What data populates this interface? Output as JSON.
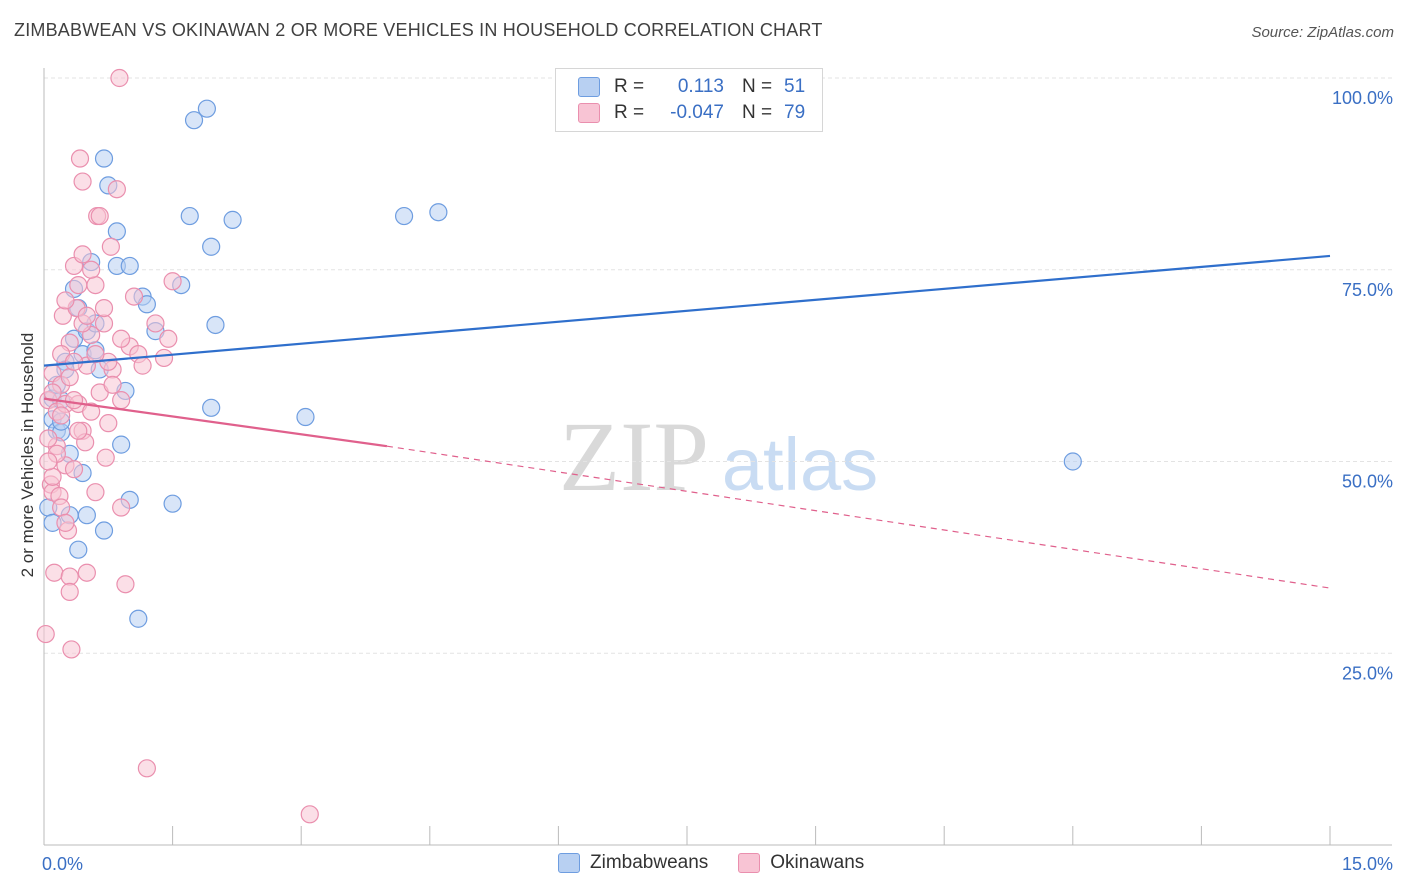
{
  "title": "ZIMBABWEAN VS OKINAWAN 2 OR MORE VEHICLES IN HOUSEHOLD CORRELATION CHART",
  "source": "Source: ZipAtlas.com",
  "watermark": {
    "zip": "ZIP",
    "atlas": "atlas"
  },
  "legend": {
    "r_label": "R =",
    "n_label": "N =",
    "rows": [
      {
        "r": "0.113",
        "n": "51",
        "fill": "#b8d0f2",
        "stroke": "#6e9de0"
      },
      {
        "r": "-0.047",
        "n": "79",
        "fill": "#f8c4d4",
        "stroke": "#ea8fae"
      }
    ]
  },
  "chart_data": {
    "type": "scatter",
    "title": "ZIMBABWEAN VS OKINAWAN 2 OR MORE VEHICLES IN HOUSEHOLD CORRELATION CHART",
    "xlabel": "",
    "ylabel": "2 or more Vehicles in Household",
    "xlim": [
      0,
      15
    ],
    "ylim": [
      0,
      100
    ],
    "x_tick_labels": [
      "0.0%",
      "15.0%"
    ],
    "y_tick_values": [
      25,
      50,
      75,
      100
    ],
    "y_tick_labels": [
      "25.0%",
      "50.0%",
      "75.0%",
      "100.0%"
    ],
    "grid": true,
    "series": [
      {
        "name": "Zimbabweans",
        "color": "#6e9de0",
        "fill": "#b8d0f2",
        "trend": {
          "x": [
            0,
            15
          ],
          "y": [
            62.5,
            76.8
          ],
          "style": "solid",
          "color": "#2f6fcc"
        },
        "points": [
          [
            0.1,
            58.2
          ],
          [
            0.1,
            55.5
          ],
          [
            0.15,
            54
          ],
          [
            0.2,
            58
          ],
          [
            0.2,
            53.8
          ],
          [
            0.2,
            55.2
          ],
          [
            0.25,
            63
          ],
          [
            0.25,
            62
          ],
          [
            0.3,
            51
          ],
          [
            0.3,
            43
          ],
          [
            0.35,
            72.5
          ],
          [
            0.35,
            66
          ],
          [
            0.4,
            70
          ],
          [
            0.4,
            38.5
          ],
          [
            0.45,
            48.5
          ],
          [
            0.45,
            64
          ],
          [
            0.5,
            67
          ],
          [
            0.5,
            43
          ],
          [
            0.55,
            76
          ],
          [
            0.6,
            64.5
          ],
          [
            0.65,
            62
          ],
          [
            0.7,
            89.5
          ],
          [
            0.7,
            41
          ],
          [
            0.75,
            86
          ],
          [
            0.85,
            80
          ],
          [
            0.85,
            75.5
          ],
          [
            0.9,
            52.2
          ],
          [
            0.95,
            59.2
          ],
          [
            1.0,
            75.5
          ],
          [
            1.1,
            29.5
          ],
          [
            1.15,
            71.5
          ],
          [
            1.2,
            70.5
          ],
          [
            1.3,
            67
          ],
          [
            1.5,
            44.5
          ],
          [
            1.6,
            73
          ],
          [
            1.7,
            82
          ],
          [
            1.75,
            94.5
          ],
          [
            1.9,
            96
          ],
          [
            1.95,
            57
          ],
          [
            1.95,
            78
          ],
          [
            2.0,
            67.8
          ],
          [
            2.2,
            81.5
          ],
          [
            3.05,
            55.8
          ],
          [
            4.2,
            82
          ],
          [
            4.6,
            82.5
          ],
          [
            12.0,
            50
          ],
          [
            0.05,
            44
          ],
          [
            0.15,
            60
          ],
          [
            0.6,
            68
          ],
          [
            1.0,
            45
          ],
          [
            0.1,
            42
          ]
        ]
      },
      {
        "name": "Okinawans",
        "color": "#ea8fae",
        "fill": "#f8c4d4",
        "trend": {
          "x": [
            0,
            4.0,
            15
          ],
          "y": [
            58.2,
            52,
            33.5
          ],
          "solid_until": 4.0,
          "color": "#e0608c"
        },
        "points": [
          [
            0.02,
            27.5
          ],
          [
            0.05,
            58
          ],
          [
            0.08,
            47
          ],
          [
            0.1,
            61.5
          ],
          [
            0.1,
            46
          ],
          [
            0.12,
            35.5
          ],
          [
            0.15,
            56.5
          ],
          [
            0.15,
            52
          ],
          [
            0.18,
            45.5
          ],
          [
            0.2,
            60
          ],
          [
            0.2,
            44
          ],
          [
            0.22,
            69
          ],
          [
            0.25,
            57.5
          ],
          [
            0.25,
            49.5
          ],
          [
            0.28,
            41
          ],
          [
            0.3,
            65.5
          ],
          [
            0.3,
            35
          ],
          [
            0.3,
            33
          ],
          [
            0.32,
            25.5
          ],
          [
            0.35,
            75.5
          ],
          [
            0.35,
            49
          ],
          [
            0.38,
            70
          ],
          [
            0.4,
            73
          ],
          [
            0.4,
            57.5
          ],
          [
            0.42,
            89.5
          ],
          [
            0.45,
            86.5
          ],
          [
            0.45,
            54
          ],
          [
            0.48,
            52.5
          ],
          [
            0.5,
            62.5
          ],
          [
            0.5,
            35.5
          ],
          [
            0.55,
            66.5
          ],
          [
            0.55,
            56.5
          ],
          [
            0.6,
            73
          ],
          [
            0.6,
            46
          ],
          [
            0.62,
            82
          ],
          [
            0.65,
            82
          ],
          [
            0.7,
            68
          ],
          [
            0.72,
            50.5
          ],
          [
            0.75,
            55
          ],
          [
            0.78,
            78
          ],
          [
            0.8,
            62
          ],
          [
            0.85,
            85.5
          ],
          [
            0.88,
            100
          ],
          [
            0.9,
            58
          ],
          [
            0.9,
            44
          ],
          [
            0.95,
            34
          ],
          [
            1.0,
            65
          ],
          [
            1.05,
            71.5
          ],
          [
            1.1,
            64
          ],
          [
            1.15,
            62.5
          ],
          [
            1.2,
            10
          ],
          [
            1.3,
            68
          ],
          [
            1.4,
            63.5
          ],
          [
            1.5,
            73.5
          ],
          [
            1.45,
            66
          ],
          [
            3.1,
            4
          ],
          [
            0.05,
            53
          ],
          [
            0.1,
            59
          ],
          [
            0.2,
            64
          ],
          [
            0.25,
            71
          ],
          [
            0.35,
            58
          ],
          [
            0.45,
            68
          ],
          [
            0.55,
            75
          ],
          [
            0.65,
            59
          ],
          [
            0.75,
            63
          ],
          [
            0.15,
            51
          ],
          [
            0.25,
            42
          ],
          [
            0.1,
            48
          ],
          [
            0.3,
            61
          ],
          [
            0.4,
            54
          ],
          [
            0.5,
            69
          ],
          [
            0.6,
            64
          ],
          [
            0.7,
            70
          ],
          [
            0.8,
            60
          ],
          [
            0.9,
            66
          ],
          [
            0.05,
            50
          ],
          [
            0.2,
            56
          ],
          [
            0.35,
            63
          ],
          [
            0.45,
            77
          ]
        ]
      }
    ]
  }
}
